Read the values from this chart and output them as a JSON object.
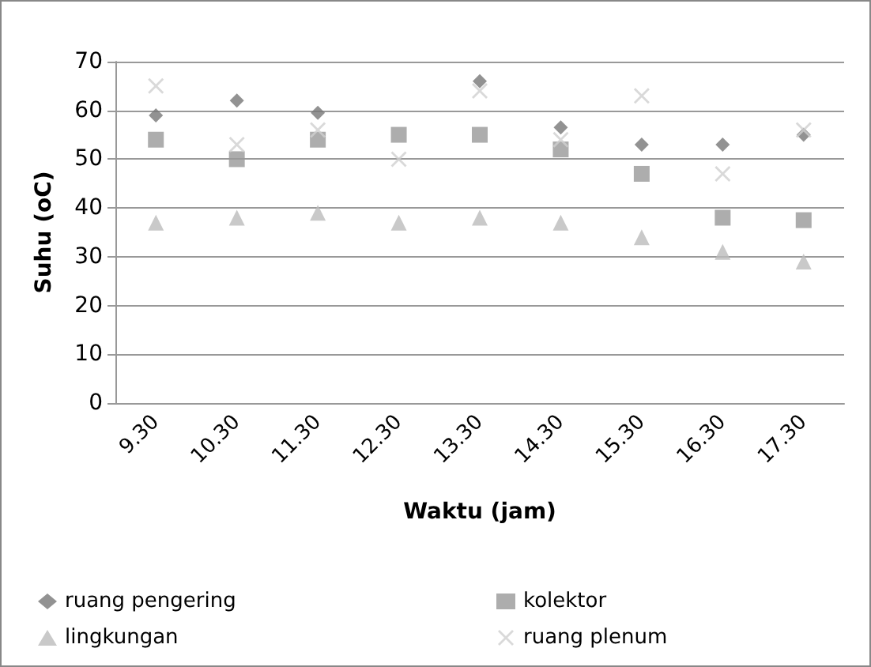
{
  "chart_data": {
    "type": "scatter",
    "xlabel": "Waktu (jam)",
    "ylabel": "Suhu (oC)",
    "categories": [
      "9.30",
      "10.30",
      "11.30",
      "12.30",
      "13.30",
      "14.30",
      "15.30",
      "16.30",
      "17.30"
    ],
    "series": [
      {
        "name": "ruang pengering",
        "color": "#777777",
        "marker": "diamond",
        "values": [
          59,
          62,
          59.5,
          null,
          66,
          56.5,
          53,
          53,
          55
        ]
      },
      {
        "name": "kolektor",
        "color": "#999999",
        "marker": "square",
        "values": [
          54,
          50,
          54,
          55,
          55,
          52,
          47,
          38,
          37.5
        ]
      },
      {
        "name": "lingkungan",
        "color": "#bbbbbb",
        "marker": "triangle",
        "values": [
          37,
          38,
          39,
          37,
          38,
          37,
          34,
          31,
          29
        ]
      },
      {
        "name": "ruang plenum",
        "color": "#d0d0d0",
        "marker": "cross",
        "values": [
          65,
          53,
          56,
          50,
          64,
          54,
          63,
          47,
          56
        ]
      }
    ],
    "ylim": [
      0,
      70
    ],
    "yticks": [
      0,
      10,
      20,
      30,
      40,
      50,
      60,
      70
    ],
    "grid": "y",
    "legend": "bottom"
  }
}
